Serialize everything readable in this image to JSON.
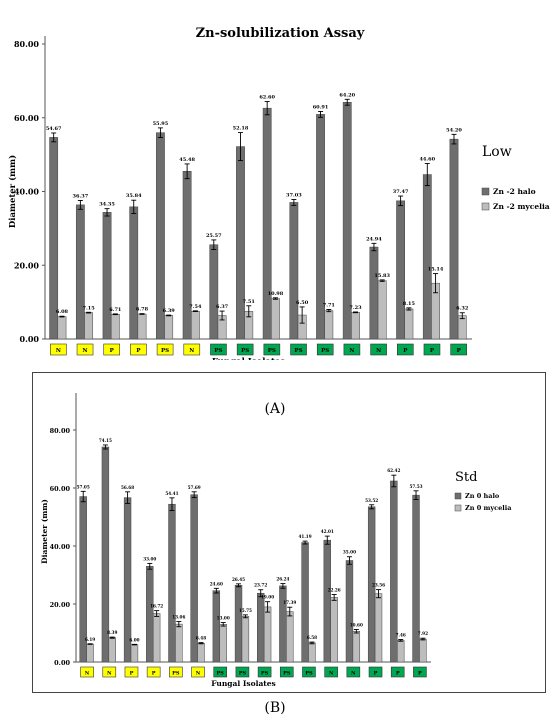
{
  "chart_data": [
    {
      "type": "bar",
      "title": "Zn-solubilization Assay",
      "xlabel": "Fungal Isolates",
      "ylabel": "Diameter (mm)",
      "ylim": [
        0,
        80
      ],
      "yticks": [
        "0.00",
        "20.00",
        "40.00",
        "60.00",
        "80.00"
      ],
      "legend_title": "Low",
      "legend_position": "right",
      "categories": [
        "N",
        "N",
        "P",
        "P",
        "PS",
        "N",
        "PS",
        "PS",
        "PS",
        "PS",
        "PS",
        "N",
        "N",
        "P",
        "P",
        "P"
      ],
      "category_colors": [
        "#ffff00",
        "#ffff00",
        "#ffff00",
        "#ffff00",
        "#ffff00",
        "#ffff00",
        "#00a650",
        "#00a650",
        "#00a650",
        "#00a650",
        "#00a650",
        "#00a650",
        "#00a650",
        "#00a650",
        "#00a650",
        "#00a650"
      ],
      "series": [
        {
          "name": "Zn -2 halo",
          "color": "#6e6e6e",
          "values": [
            54.67,
            36.37,
            34.35,
            35.84,
            55.95,
            45.48,
            25.57,
            52.18,
            62.6,
            37.03,
            60.91,
            64.2,
            24.94,
            37.47,
            44.6,
            54.2
          ],
          "labels": [
            "54.67",
            "36.37",
            "34.35",
            "35.84",
            "55.95",
            "45.48",
            "25.57",
            "52.18",
            "62.60",
            "37.03",
            "60.91",
            "64.20",
            "24.94",
            "37.47",
            "44.60",
            "54.20"
          ],
          "errors": [
            1.2,
            1.2,
            1.0,
            1.8,
            1.3,
            2.0,
            1.3,
            3.8,
            1.8,
            0.8,
            0.8,
            0.8,
            1.0,
            1.3,
            3.0,
            1.3
          ]
        },
        {
          "name": "Zn -2 mycelia",
          "color": "#bdbdbd",
          "values": [
            6.08,
            7.15,
            6.71,
            6.78,
            6.39,
            7.54,
            6.37,
            7.51,
            10.98,
            6.5,
            7.71,
            7.23,
            15.83,
            8.15,
            15.14,
            6.32
          ],
          "labels": [
            "6.08",
            "7.15",
            "6.71",
            "6.78",
            "6.39",
            "7.54",
            "6.37",
            "7.51",
            "10.98",
            "6.50",
            "7.71",
            "7.23",
            "15.83",
            "8.15",
            "15.14",
            "6.32"
          ],
          "errors": [
            0.1,
            0.1,
            0.1,
            0.1,
            0.1,
            0.1,
            1.2,
            1.5,
            0.2,
            2.2,
            0.3,
            0.1,
            0.2,
            0.3,
            2.6,
            0.8
          ]
        }
      ],
      "caption": "(A)"
    },
    {
      "type": "bar",
      "title": "",
      "xlabel": "Fungal Isolates",
      "ylabel": "Diameter (mm)",
      "ylim": [
        0,
        90
      ],
      "yticks": [
        "0.00",
        "20.00",
        "40.00",
        "60.00",
        "80.00"
      ],
      "legend_title": "Std",
      "legend_position": "right",
      "categories": [
        "N",
        "N",
        "P",
        "P",
        "PS",
        "N",
        "PS",
        "PS",
        "PS",
        "PS",
        "PS",
        "N",
        "N",
        "P",
        "P",
        "P"
      ],
      "category_colors": [
        "#ffff00",
        "#ffff00",
        "#ffff00",
        "#ffff00",
        "#ffff00",
        "#ffff00",
        "#00a650",
        "#00a650",
        "#00a650",
        "#00a650",
        "#00a650",
        "#00a650",
        "#00a650",
        "#00a650",
        "#00a650",
        "#00a650"
      ],
      "series": [
        {
          "name": "Zn 0 halo",
          "color": "#6e6e6e",
          "values": [
            57.05,
            74.15,
            56.68,
            33.0,
            54.41,
            57.69,
            24.6,
            26.45,
            23.72,
            26.24,
            41.19,
            42.01,
            35.0,
            53.52,
            62.42,
            57.53
          ],
          "labels": [
            "57.05",
            "74.15",
            "56.68",
            "33.00",
            "54.41",
            "57.69",
            "24.60",
            "26.45",
            "23.72",
            "26.24",
            "41.19",
            "42.01",
            "35.00",
            "53.52",
            "62.42",
            "57.53"
          ],
          "errors": [
            1.8,
            0.7,
            2.0,
            1.0,
            2.2,
            1.0,
            0.8,
            0.5,
            1.2,
            0.8,
            0.5,
            1.4,
            1.3,
            0.7,
            2.0,
            1.5
          ]
        },
        {
          "name": "Zn 0 mycelia",
          "color": "#bdbdbd",
          "values": [
            6.19,
            8.39,
            6.0,
            16.72,
            13.06,
            6.48,
            13.0,
            15.75,
            19.0,
            17.39,
            6.58,
            22.26,
            10.6,
            23.56,
            7.46,
            7.92
          ],
          "labels": [
            "6.19",
            "8.39",
            "6.00",
            "16.72",
            "13.06",
            "6.48",
            "13.00",
            "15.75",
            "19.00",
            "17.39",
            "6.58",
            "22.26",
            "10.60",
            "23.56",
            "7.46",
            "7.92"
          ],
          "errors": [
            0.1,
            0.2,
            0.1,
            1.0,
            0.9,
            0.2,
            0.6,
            0.5,
            1.8,
            1.5,
            0.3,
            1.0,
            0.6,
            1.4,
            0.3,
            0.3
          ]
        }
      ],
      "caption": "(B)"
    }
  ]
}
